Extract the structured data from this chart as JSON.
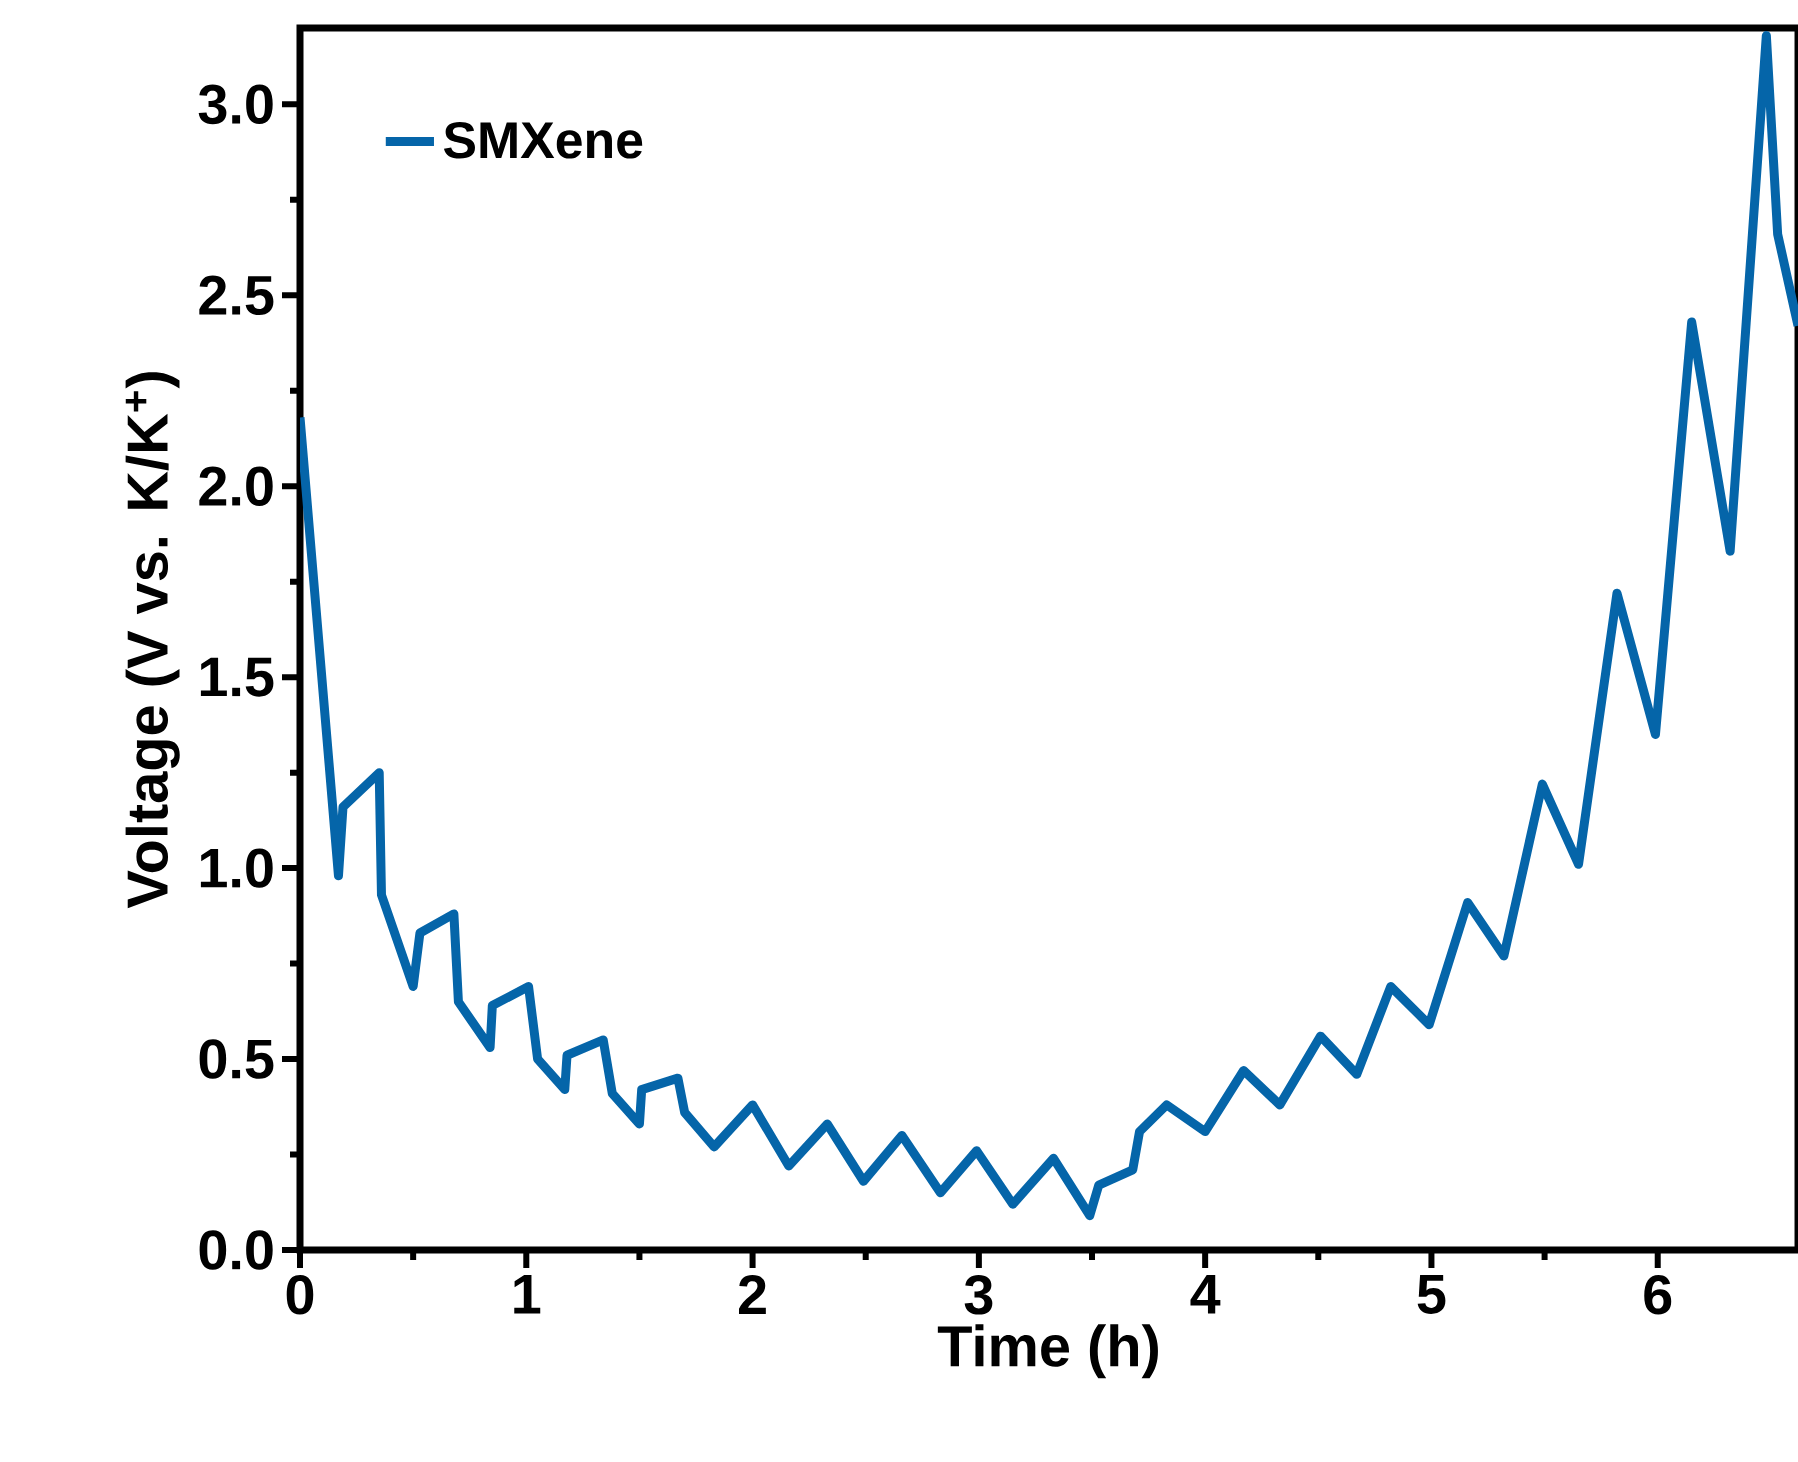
{
  "chart_data": {
    "type": "line",
    "xlabel": "Time (h)",
    "ylabel": "Voltage (V vs. K/K$^{+}$)",
    "xlim": [
      0,
      6.62
    ],
    "ylim": [
      0,
      3.2
    ],
    "xticks": [
      0,
      1,
      2,
      3,
      4,
      5,
      6
    ],
    "yticks": [
      {
        "value": 0,
        "label": "0.0"
      },
      {
        "value": 0.5,
        "label": "0.5"
      },
      {
        "value": 1,
        "label": "1.0"
      },
      {
        "value": 1.5,
        "label": "1.5"
      },
      {
        "value": 2,
        "label": "2.0"
      },
      {
        "value": 2.5,
        "label": "2.5"
      },
      {
        "value": 3,
        "label": "3.0"
      }
    ],
    "legend": "top left",
    "grid": false,
    "marker": "none",
    "line_style": "solid",
    "series": [
      {
        "name": "SMXene",
        "color": "#0565a9",
        "x": [
          0,
          0.17,
          0.19,
          0.35,
          0.36,
          0.5,
          0.53,
          0.68,
          0.7,
          0.84,
          0.85,
          1.01,
          1.05,
          1.17,
          1.18,
          1.34,
          1.38,
          1.5,
          1.51,
          1.67,
          1.7,
          1.83,
          2.0,
          2.16,
          2.33,
          2.49,
          2.66,
          2.83,
          2.99,
          3.15,
          3.33,
          3.49,
          3.53,
          3.68,
          3.71,
          3.83,
          4.0,
          4.17,
          4.33,
          4.51,
          4.67,
          4.82,
          4.99,
          5.16,
          5.32,
          5.49,
          5.65,
          5.82,
          5.99,
          6.15,
          6.32,
          6.48,
          6.53,
          6.62
        ],
        "values": [
          2.18,
          0.98,
          1.16,
          1.25,
          0.93,
          0.69,
          0.83,
          0.88,
          0.65,
          0.53,
          0.64,
          0.69,
          0.5,
          0.42,
          0.51,
          0.55,
          0.41,
          0.33,
          0.42,
          0.45,
          0.36,
          0.27,
          0.38,
          0.22,
          0.33,
          0.18,
          0.3,
          0.15,
          0.26,
          0.12,
          0.24,
          0.09,
          0.17,
          0.21,
          0.31,
          0.38,
          0.31,
          0.47,
          0.38,
          0.56,
          0.46,
          0.69,
          0.59,
          0.91,
          0.77,
          1.22,
          1.01,
          1.72,
          1.35,
          2.43,
          1.83,
          3.18,
          2.66,
          2.42
        ]
      }
    ]
  }
}
